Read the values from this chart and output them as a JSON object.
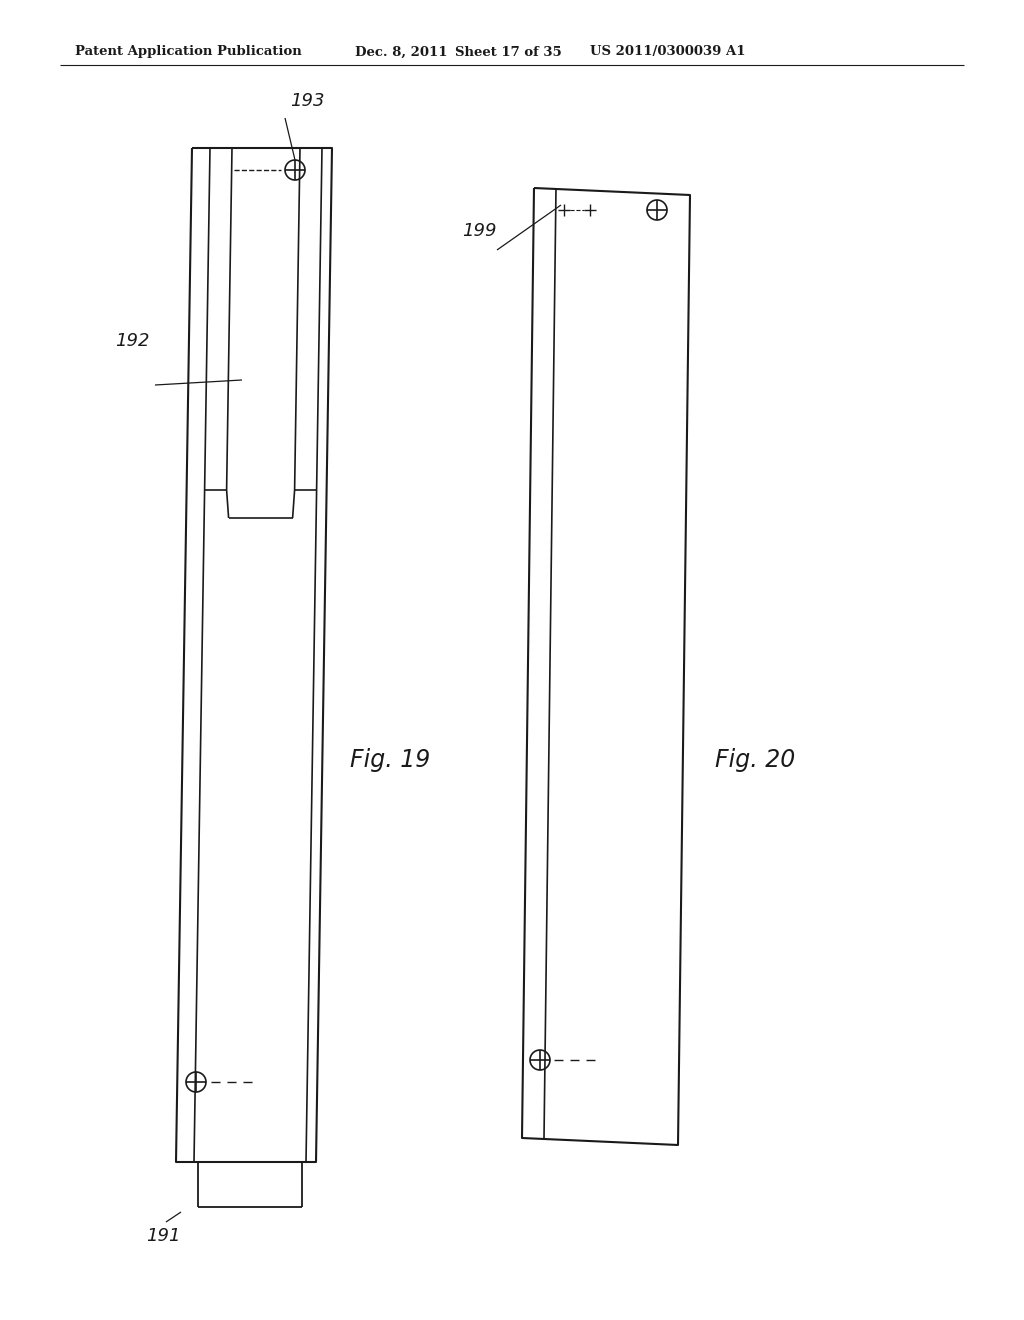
{
  "bg_color": "#ffffff",
  "line_color": "#1a1a1a",
  "header_text": "Patent Application Publication",
  "header_date": "Dec. 8, 2011",
  "header_sheet": "Sheet 17 of 35",
  "header_patent": "US 2011/0300039 A1",
  "fig19_label": "Fig. 19",
  "fig20_label": "Fig. 20",
  "label_191": "191",
  "label_192": "192",
  "label_193": "193",
  "label_199": "199"
}
